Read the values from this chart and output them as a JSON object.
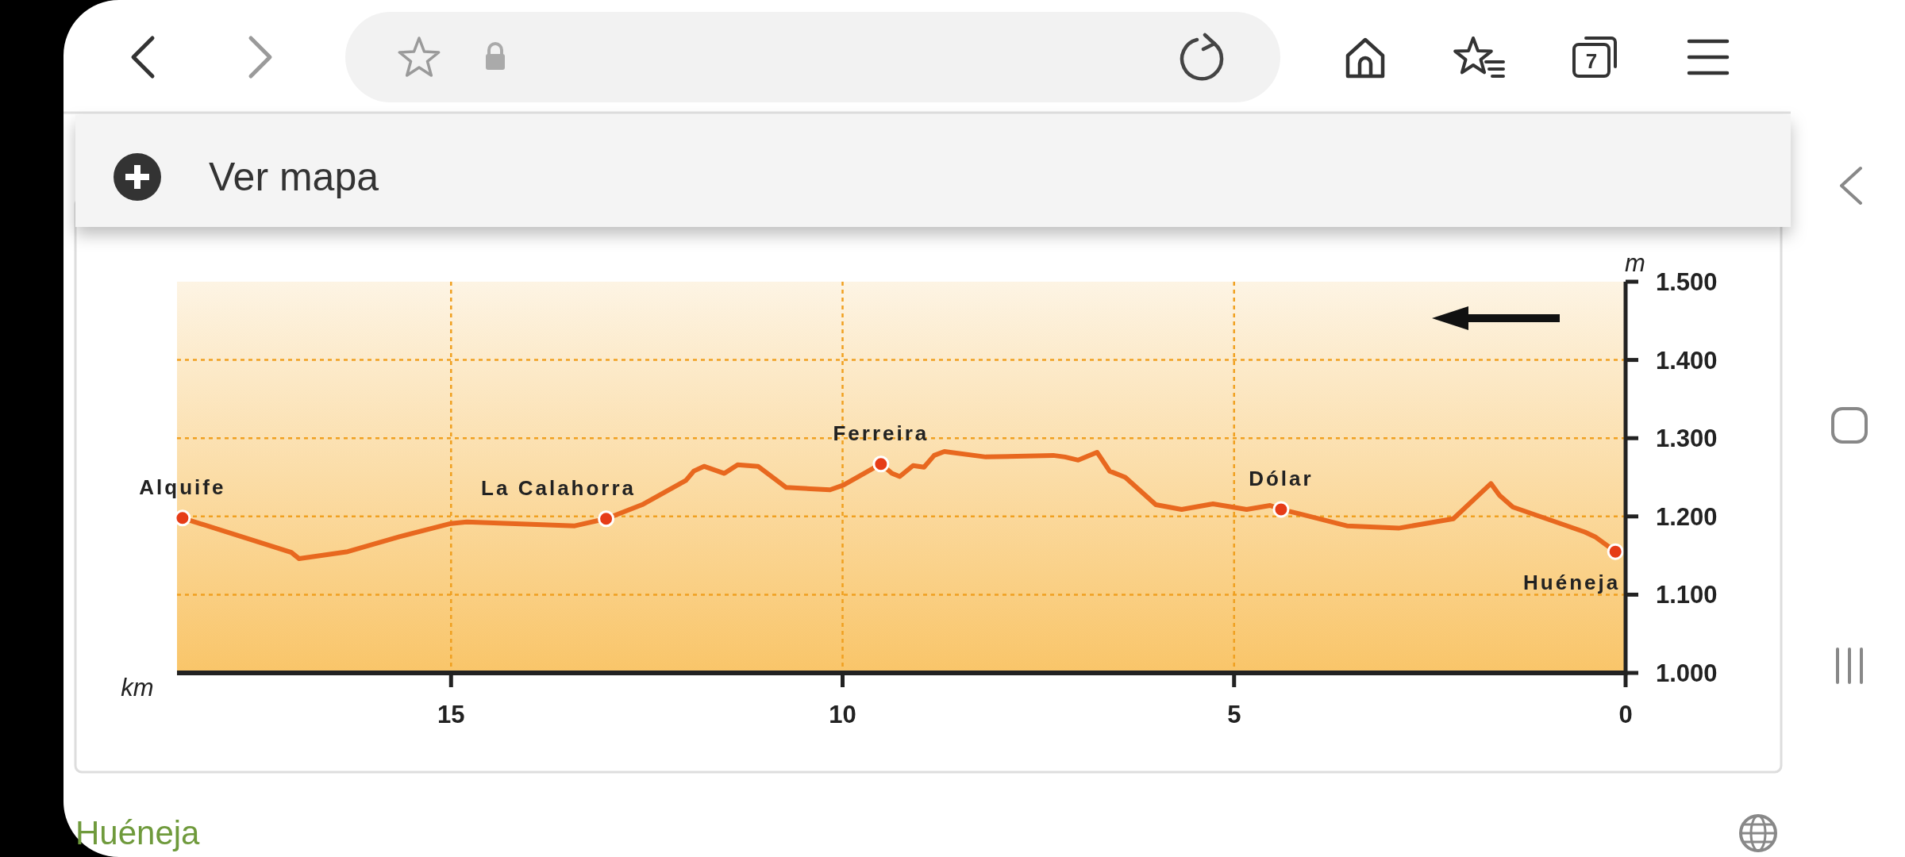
{
  "chart_data": {
    "type": "line",
    "xlabel": "km",
    "ylabel": "m",
    "xlim": [
      18.5,
      0
    ],
    "xticks": [
      15,
      10,
      5,
      0
    ],
    "ylim": [
      1000,
      1500
    ],
    "yticks": [
      {
        "value": 1000,
        "label": "1.000"
      },
      {
        "value": 1100,
        "label": "1.100"
      },
      {
        "value": 1200,
        "label": "1.200"
      },
      {
        "value": 1300,
        "label": "1.300"
      },
      {
        "value": 1400,
        "label": "1.400"
      },
      {
        "value": 1500,
        "label": "1.500"
      }
    ],
    "grid": true,
    "series": [
      {
        "color": "#e8681f",
        "x": [
          18.43,
          17.04,
          16.94,
          16.32,
          15.66,
          15.0,
          14.8,
          13.42,
          13.02,
          12.56,
          12.0,
          11.9,
          11.77,
          11.51,
          11.34,
          11.08,
          10.72,
          10.16,
          9.99,
          9.51,
          9.37,
          9.27,
          9.1,
          8.96,
          8.83,
          8.7,
          8.17,
          7.31,
          7.16,
          6.99,
          6.75,
          6.59,
          6.39,
          6.0,
          5.67,
          5.27,
          4.84,
          4.54,
          4.4,
          4.15,
          3.56,
          2.9,
          2.2,
          1.72,
          1.61,
          1.44,
          0.52,
          0.39,
          0.13
        ],
        "values": [
          1198,
          1154,
          1146,
          1155,
          1174,
          1191,
          1193,
          1188,
          1197,
          1215,
          1246,
          1258,
          1264,
          1255,
          1266,
          1264,
          1237,
          1234,
          1240,
          1267,
          1255,
          1251,
          1265,
          1263,
          1278,
          1283,
          1276,
          1278,
          1276,
          1272,
          1282,
          1258,
          1250,
          1215,
          1209,
          1216,
          1209,
          1214,
          1209,
          1203,
          1188,
          1185,
          1197,
          1242,
          1227,
          1212,
          1180,
          1174,
          1155
        ]
      },
      {
        "type": "scatter",
        "marker": "circle",
        "color": "#e63c17",
        "x": [
          18.43,
          13.02,
          9.51,
          4.4,
          0.13
        ],
        "values": [
          1198,
          1197,
          1267,
          1209,
          1155
        ]
      }
    ],
    "annotations": [
      {
        "text": "Alquife",
        "x": 18.43,
        "y": 1198
      },
      {
        "text": "La Calahorra",
        "x": 13.02,
        "y": 1197
      },
      {
        "text": "Ferreira",
        "x": 9.51,
        "y": 1267
      },
      {
        "text": "Dólar",
        "x": 4.4,
        "y": 1209
      },
      {
        "text": "Huéneja",
        "x": 0.13,
        "y": 1155
      },
      "Ver mapa",
      "7",
      "Huéneja"
    ]
  }
}
